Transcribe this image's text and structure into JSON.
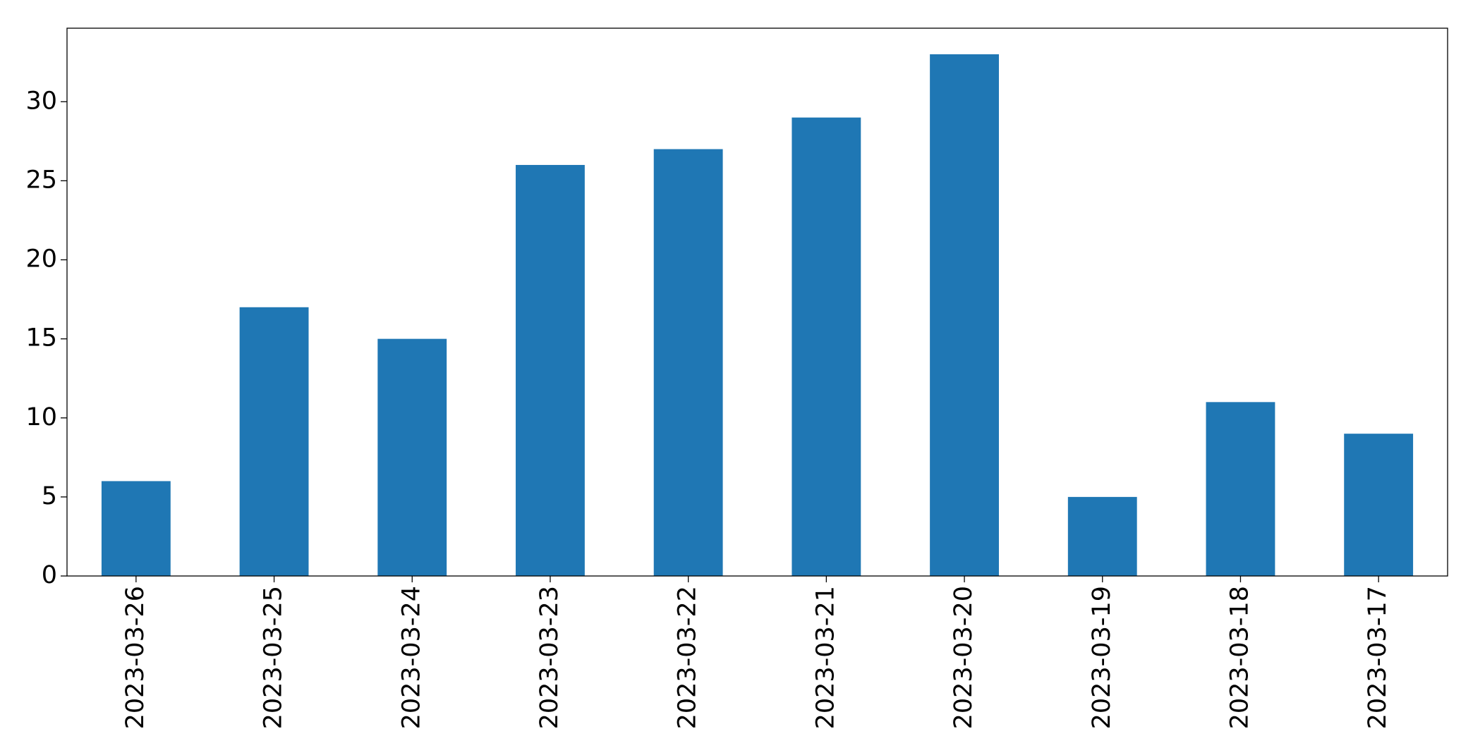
{
  "chart_data": {
    "type": "bar",
    "categories": [
      "2023-03-26",
      "2023-03-25",
      "2023-03-24",
      "2023-03-23",
      "2023-03-22",
      "2023-03-21",
      "2023-03-20",
      "2023-03-19",
      "2023-03-18",
      "2023-03-17"
    ],
    "values": [
      6,
      17,
      15,
      26,
      27,
      29,
      33,
      5,
      11,
      9
    ],
    "color": "#1f77b4",
    "ylim": [
      0,
      34.65
    ],
    "yticks": [
      0,
      5,
      10,
      15,
      20,
      25,
      30
    ],
    "grid": false
  }
}
